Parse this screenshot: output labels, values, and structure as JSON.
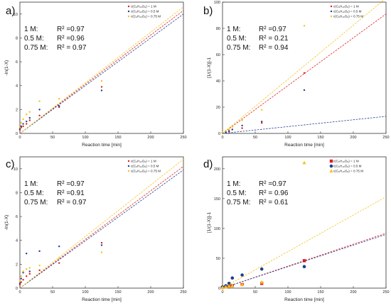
{
  "colors": {
    "1M": "#e31a1c",
    "0.5M": "#1f3f8f",
    "0.75M": "#f2c318"
  },
  "chart_data": [
    {
      "panel": "a)",
      "type": "scatter",
      "xlabel": "Reaction time [min]",
      "ylabel": "-ln(1-X)",
      "xlim": [
        0,
        250
      ],
      "ylim": [
        0,
        11
      ],
      "xticks": [
        0,
        50,
        100,
        150,
        200,
        250
      ],
      "yticks": [
        0,
        2,
        4,
        6,
        8,
        10
      ],
      "legend_position": "top-right",
      "marker": "dot",
      "annotations": [
        {
          "label": "1 M:",
          "value": "R² =0.97"
        },
        {
          "label": "0.5 M:",
          "value": "R² =0.96"
        },
        {
          "label": "0.75 M:",
          "value": "R² = 0.97"
        }
      ],
      "series": [
        {
          "name": "c(C₆H₁₀O₈) = 1 M",
          "color_key": "1M",
          "x": [
            0,
            2,
            5,
            10,
            15,
            30,
            60,
            125
          ],
          "y": [
            0.3,
            0.5,
            0.6,
            0.8,
            1.1,
            1.5,
            2.2,
            3.9
          ],
          "fit": [
            [
              0,
              0
            ],
            [
              250,
              10.3
            ]
          ]
        },
        {
          "name": "c(C₆H₁₀O₈) = 0.5 M",
          "color_key": "0.5M",
          "x": [
            0,
            2,
            5,
            10,
            15,
            30,
            60,
            125
          ],
          "y": [
            0.4,
            0.6,
            0.8,
            1.0,
            1.3,
            2.0,
            2.3,
            3.6
          ],
          "fit": [
            [
              0,
              0
            ],
            [
              250,
              10.0
            ]
          ]
        },
        {
          "name": "c(C₆H₁₀O₈) = 0.75 M",
          "color_key": "0.75M",
          "x": [
            0,
            2,
            5,
            10,
            15,
            30,
            60,
            125
          ],
          "y": [
            0.5,
            0.9,
            1.2,
            1.6,
            1.8,
            2.7,
            2.9,
            4.4
          ],
          "fit": [
            [
              0,
              0
            ],
            [
              250,
              10.6
            ]
          ]
        }
      ]
    },
    {
      "panel": "b)",
      "type": "scatter",
      "xlabel": "Reaction time [min]",
      "ylabel": "[1/(1-X)]-1",
      "xlim": [
        0,
        250
      ],
      "ylim": [
        0,
        100
      ],
      "xticks": [
        0,
        50,
        100,
        150,
        200,
        250
      ],
      "yticks": [
        0,
        20,
        40,
        60,
        80,
        100
      ],
      "legend_position": "top-right",
      "marker": "dot",
      "annotations": [
        {
          "label": "1 M:",
          "value": "R² =0.97"
        },
        {
          "label": "0.5 M:",
          "value": "R² = 0.21"
        },
        {
          "label": "0.75 M:",
          "value": "R² = 0.94"
        }
      ],
      "series": [
        {
          "name": "c(C₆H₁₀O₈) = 1 M",
          "color_key": "1M",
          "x": [
            0,
            5,
            10,
            15,
            30,
            60,
            125
          ],
          "y": [
            0.5,
            1,
            2,
            3,
            4,
            8,
            46
          ],
          "fit": [
            [
              0,
              0
            ],
            [
              250,
              91
            ]
          ]
        },
        {
          "name": "c(C₆H₁₀O₈) = 0.5 M",
          "color_key": "0.5M",
          "x": [
            0,
            5,
            10,
            15,
            30,
            60,
            125
          ],
          "y": [
            0.5,
            1,
            1.5,
            3,
            6,
            9,
            33
          ],
          "fit": [
            [
              0,
              0
            ],
            [
              250,
              13
            ]
          ]
        },
        {
          "name": "c(C₆H₁₀O₈) = 0.75 M",
          "color_key": "0.75M",
          "x": [
            0,
            5,
            10,
            15,
            30,
            60,
            125
          ],
          "y": [
            1,
            2,
            3,
            5,
            10,
            18,
            82
          ],
          "fit": [
            [
              0,
              0
            ],
            [
              250,
              103
            ]
          ]
        }
      ]
    },
    {
      "panel": "c)",
      "type": "scatter",
      "xlabel": "Reaction time [min]",
      "ylabel": "-ln(1-X)",
      "xlim": [
        0,
        250
      ],
      "ylim": [
        0,
        11
      ],
      "xticks": [
        0,
        50,
        100,
        150,
        200,
        250
      ],
      "yticks": [
        0,
        2,
        4,
        6,
        8,
        10
      ],
      "legend_position": "top-right",
      "marker": "dot",
      "annotations": [
        {
          "label": "1 M:",
          "value": "R² =0.97"
        },
        {
          "label": "0.5 M:",
          "value": "R² =0.91"
        },
        {
          "label": "0.75 M:",
          "value": "R² = 0.97"
        }
      ],
      "series": [
        {
          "name": "c(C₆H₁₀O₈) = 1 M",
          "color_key": "1M",
          "x": [
            0,
            2,
            5,
            10,
            15,
            30,
            60,
            125
          ],
          "y": [
            0.3,
            0.5,
            0.7,
            1.0,
            1.2,
            1.5,
            2.1,
            3.8
          ],
          "fit": [
            [
              0,
              0
            ],
            [
              250,
              10.2
            ]
          ]
        },
        {
          "name": "c(C₆H₁₀O₈) = 0.5 M",
          "color_key": "0.5M",
          "x": [
            0,
            2,
            5,
            10,
            15,
            30,
            60,
            125
          ],
          "y": [
            0.4,
            0.8,
            1.3,
            2.9,
            1.4,
            3.1,
            3.5,
            3.6
          ],
          "fit": [
            [
              0,
              0
            ],
            [
              250,
              9.9
            ]
          ]
        },
        {
          "name": "c(C₆H₁₀O₈) = 0.75 M",
          "color_key": "0.75M",
          "x": [
            0,
            2,
            5,
            10,
            15,
            30,
            60,
            125
          ],
          "y": [
            0.6,
            1.0,
            1.4,
            1.6,
            1.7,
            1.9,
            2.5,
            3.0
          ],
          "fit": [
            [
              0,
              0
            ],
            [
              250,
              10.8
            ]
          ]
        }
      ]
    },
    {
      "panel": "d)",
      "type": "scatter",
      "xlabel": "Reaction time [min]",
      "ylabel": "[1/(1-X)]-1",
      "xlim": [
        0,
        250
      ],
      "ylim": [
        0,
        220
      ],
      "xticks": [
        0,
        50,
        100,
        150,
        200,
        250
      ],
      "yticks": [
        0,
        50,
        100,
        150,
        200
      ],
      "legend_position": "top-right",
      "marker": "shapes",
      "annotations": [
        {
          "label": "1 M:",
          "value": "R² =0.97"
        },
        {
          "label": "0.5 M:",
          "value": "R² = 0.96"
        },
        {
          "label": "0.75 M:",
          "value": "R² = 0.61"
        }
      ],
      "series": [
        {
          "name": "c(C₆H₁₀O₈) = 1 M",
          "color_key": "1M",
          "marker": "square",
          "x": [
            0,
            5,
            10,
            15,
            30,
            60,
            125
          ],
          "y": [
            1,
            2,
            3,
            4,
            6,
            8,
            46
          ],
          "fit": [
            [
              0,
              0
            ],
            [
              250,
              92
            ]
          ]
        },
        {
          "name": "c(C₆H₁₀O₈) = 0.5 M",
          "color_key": "0.5M",
          "marker": "circle",
          "x": [
            0,
            5,
            10,
            15,
            30,
            60,
            125
          ],
          "y": [
            2,
            4,
            8,
            17,
            22,
            32,
            36
          ],
          "fit": [
            [
              0,
              0
            ],
            [
              250,
              90
            ]
          ]
        },
        {
          "name": "c(C₆H₁₀O₈) = 0.75 M",
          "color_key": "0.75M",
          "marker": "triangle",
          "x": [
            0,
            5,
            10,
            15,
            30,
            60,
            125
          ],
          "y": [
            1,
            2,
            3,
            4,
            6,
            10,
            210
          ],
          "fit": [
            [
              0,
              0
            ],
            [
              250,
              153
            ]
          ]
        }
      ]
    }
  ]
}
